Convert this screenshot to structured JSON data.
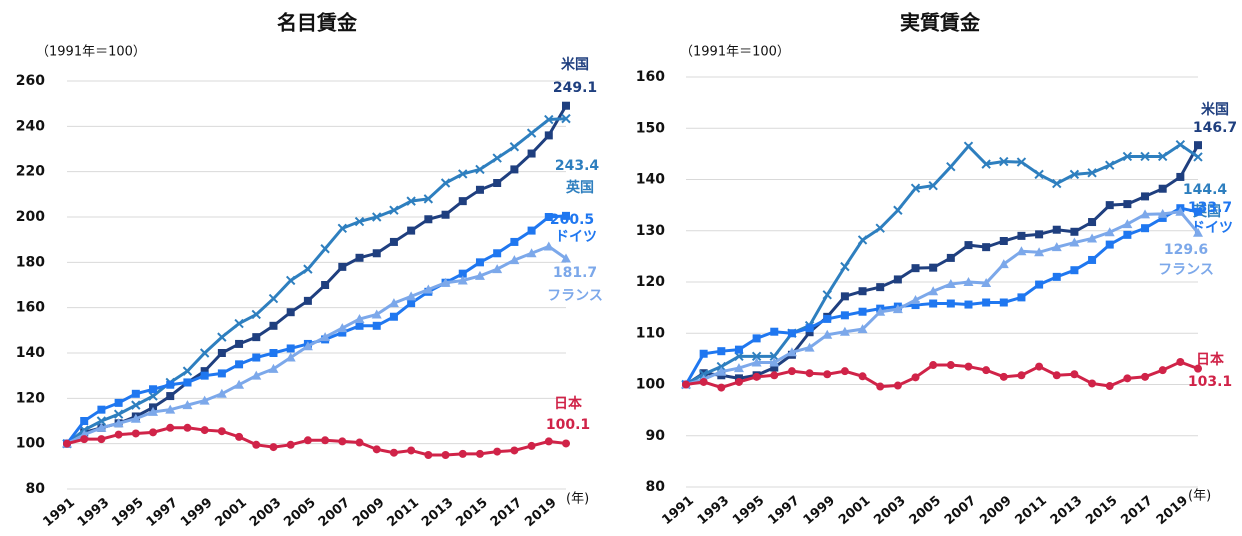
{
  "chart_data": [
    {
      "type": "line",
      "title": "名目賃金",
      "subtitle": "（1991年＝100）",
      "x_unit": "(年)",
      "x": [
        1991,
        1992,
        1993,
        1994,
        1995,
        1996,
        1997,
        1998,
        1999,
        2000,
        2001,
        2002,
        2003,
        2004,
        2005,
        2006,
        2007,
        2008,
        2009,
        2010,
        2011,
        2012,
        2013,
        2014,
        2015,
        2016,
        2017,
        2018,
        2019,
        2020
      ],
      "xlim": [
        1991,
        2020
      ],
      "xticks": [
        1991,
        1993,
        1995,
        1997,
        1999,
        2001,
        2003,
        2005,
        2007,
        2009,
        2011,
        2013,
        2015,
        2017,
        2019
      ],
      "ylim": [
        80,
        260
      ],
      "yticks": [
        80,
        100,
        120,
        140,
        160,
        180,
        200,
        220,
        240,
        260
      ],
      "grid": true,
      "series": [
        {
          "name": "米国",
          "color": "#1f3f7f",
          "marker": "square",
          "values": [
            100,
            105,
            107,
            109,
            112,
            116,
            121,
            127,
            132,
            140,
            144,
            147,
            152,
            158,
            163,
            170,
            178,
            182,
            184,
            189,
            194,
            199,
            201,
            207,
            212,
            215,
            221,
            228,
            236,
            249.1
          ]
        },
        {
          "name": "英国",
          "color": "#2e7fbf",
          "marker": "x",
          "values": [
            100,
            106,
            110,
            113,
            117,
            121,
            127,
            132,
            140,
            147,
            153,
            157,
            164,
            172,
            177,
            186,
            195,
            198,
            200,
            203,
            207,
            208,
            215,
            219,
            221,
            226,
            231,
            237,
            243,
            243.4
          ]
        },
        {
          "name": "ドイツ",
          "color": "#1f77f0",
          "marker": "square",
          "values": [
            100,
            110,
            115,
            118,
            122,
            124,
            126,
            127,
            130,
            131,
            135,
            138,
            140,
            142,
            144,
            146,
            149,
            152,
            152,
            156,
            162,
            167,
            171,
            175,
            180,
            184,
            189,
            194,
            200,
            200.5
          ]
        },
        {
          "name": "フランス",
          "color": "#7ca8ea",
          "marker": "triangle",
          "values": [
            100,
            104,
            107,
            109,
            111,
            114,
            115,
            117,
            119,
            122,
            126,
            130,
            133,
            138,
            143,
            147,
            151,
            155,
            157,
            162,
            165,
            168,
            171,
            172,
            174,
            177,
            181,
            184,
            187,
            181.7
          ]
        },
        {
          "name": "日本",
          "color": "#d02348",
          "marker": "circle",
          "values": [
            100,
            102,
            102,
            104,
            104.5,
            105,
            107,
            107,
            106,
            105.5,
            103,
            99.5,
            98.5,
            99.5,
            101.5,
            101.5,
            101,
            100.5,
            97.5,
            96,
            97,
            95,
            95,
            95.5,
            95.5,
            96.5,
            97,
            99,
            101,
            100.1
          ]
        }
      ]
    },
    {
      "type": "line",
      "title": "実質賃金",
      "subtitle": "（1991年＝100）",
      "x_unit": "(年)",
      "x": [
        1991,
        1992,
        1993,
        1994,
        1995,
        1996,
        1997,
        1998,
        1999,
        2000,
        2001,
        2002,
        2003,
        2004,
        2005,
        2006,
        2007,
        2008,
        2009,
        2010,
        2011,
        2012,
        2013,
        2014,
        2015,
        2016,
        2017,
        2018,
        2019,
        2020
      ],
      "xlim": [
        1991,
        2020
      ],
      "xticks": [
        1991,
        1993,
        1995,
        1997,
        1999,
        2001,
        2003,
        2005,
        2007,
        2009,
        2011,
        2013,
        2015,
        2017,
        2019
      ],
      "ylim": [
        80,
        160
      ],
      "yticks": [
        80,
        90,
        100,
        110,
        120,
        130,
        140,
        150,
        160
      ],
      "grid": true,
      "series": [
        {
          "name": "米国",
          "color": "#1f3f7f",
          "marker": "square",
          "values": [
            100,
            102.2,
            101.8,
            101.2,
            101.8,
            103.3,
            105.8,
            110.2,
            113.2,
            117.2,
            118.2,
            119,
            120.5,
            122.7,
            122.8,
            124.7,
            127.2,
            126.8,
            128,
            129,
            129.3,
            130.2,
            129.8,
            131.7,
            135,
            135.2,
            136.7,
            138.2,
            140.5,
            146.7
          ]
        },
        {
          "name": "英国",
          "color": "#2e7fbf",
          "marker": "x",
          "values": [
            100,
            102,
            103.5,
            105.5,
            105.5,
            105.5,
            110,
            111.5,
            117.5,
            123,
            128.2,
            130.5,
            134,
            138.3,
            138.8,
            142.5,
            146.5,
            143,
            143.5,
            143.4,
            141,
            139.2,
            141,
            141.3,
            142.8,
            144.5,
            144.5,
            144.5,
            146.8,
            144.4
          ]
        },
        {
          "name": "ドイツ",
          "color": "#1f77f0",
          "marker": "square",
          "values": [
            100,
            106,
            106.5,
            106.8,
            109,
            110.3,
            110,
            111,
            112.8,
            113.5,
            114.2,
            114.8,
            115.2,
            115.5,
            115.8,
            115.8,
            115.6,
            116,
            116,
            117,
            119.5,
            121,
            122.3,
            124.3,
            127.3,
            129.2,
            130.5,
            132.5,
            134.4,
            133.7
          ]
        },
        {
          "name": "フランス",
          "color": "#7ca8ea",
          "marker": "triangle",
          "values": [
            100,
            101,
            102.5,
            103.2,
            104.3,
            104.3,
            106.3,
            107.2,
            109.7,
            110.3,
            110.8,
            114.2,
            114.7,
            116.5,
            118.2,
            119.6,
            120,
            119.8,
            123.5,
            126,
            125.8,
            126.8,
            127.7,
            128.5,
            129.7,
            131.3,
            133.2,
            133.3,
            133.7,
            129.6
          ]
        },
        {
          "name": "日本",
          "color": "#d02348",
          "marker": "circle",
          "values": [
            100,
            100.5,
            99.4,
            100.5,
            101.5,
            101.8,
            102.6,
            102.2,
            102,
            102.6,
            101.6,
            99.6,
            99.8,
            101.4,
            103.8,
            103.8,
            103.5,
            102.8,
            101.5,
            101.8,
            103.5,
            101.8,
            102,
            100.2,
            99.7,
            101.2,
            101.5,
            102.8,
            104.4,
            103.1
          ]
        }
      ]
    }
  ]
}
